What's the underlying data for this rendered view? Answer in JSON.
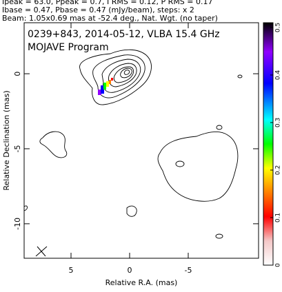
{
  "chart_data": {
    "type": "contour",
    "header": [
      "Ipeak = 63.0, Ppeak = 0.7, I RMS = 0.12, P RMS = 0.17",
      "Ibase = 0.47, Pbase = 0.47 (mJy/beam), steps: x 2",
      "Beam: 1.05x0.69 mas at -52.4 deg., Nat. Wgt. (no taper)"
    ],
    "annotations": [
      "0239+843, 2014-05-12, VLBA 15.4 GHz",
      "MOJAVE Program"
    ],
    "xlabel": "Relative R.A. (mas)",
    "ylabel": "Relative Declination (mas)",
    "xlim": [
      9,
      -11
    ],
    "ylim": [
      3.4,
      -12.3
    ],
    "xticks": [
      5,
      0,
      -5
    ],
    "yticks": [
      0,
      -5,
      -10
    ],
    "colorbar": {
      "lim": [
        0,
        0.51
      ],
      "ticks": [
        0,
        0.1,
        0.2,
        0.3,
        0.4,
        0.5
      ]
    }
  }
}
